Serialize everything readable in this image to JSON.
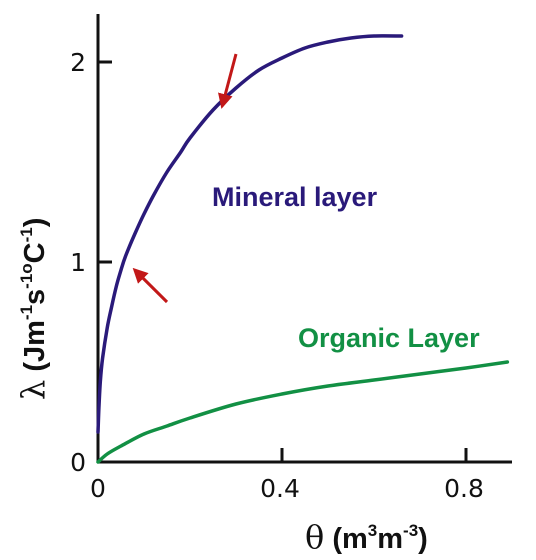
{
  "chart_data": {
    "type": "line",
    "title": "",
    "xlabel": {
      "symbol": "θ",
      "prefix": " (m",
      "sup1": "3",
      "mid": "m",
      "sup2": "-3",
      "suffix": ")"
    },
    "ylabel": {
      "symbol": "λ",
      "prefix": " (Jm",
      "sup1": "-1",
      "mid": "s",
      "sup2": "-1o",
      "post": "C",
      "sup3": "-1",
      "suffix": ")"
    },
    "xlim": [
      0,
      0.9
    ],
    "ylim": [
      0,
      2.24
    ],
    "xticks": [
      {
        "value": 0,
        "label": "0"
      },
      {
        "value": 0.4,
        "label": "0.4"
      },
      {
        "value": 0.8,
        "label": "0.8"
      }
    ],
    "yticks": [
      {
        "value": 0,
        "label": "0"
      },
      {
        "value": 1,
        "label": "1"
      },
      {
        "value": 2,
        "label": "2"
      }
    ],
    "grid": false,
    "series": [
      {
        "name": "Mineral layer",
        "color": "#2a1a7a",
        "x": [
          0.0,
          0.002,
          0.005,
          0.01,
          0.02,
          0.03,
          0.04,
          0.05,
          0.06,
          0.08,
          0.1,
          0.12,
          0.15,
          0.18,
          0.2,
          0.25,
          0.3,
          0.35,
          0.4,
          0.45,
          0.5,
          0.55,
          0.6,
          0.66
        ],
        "y": [
          0.15,
          0.27,
          0.4,
          0.52,
          0.67,
          0.78,
          0.88,
          0.96,
          1.03,
          1.14,
          1.24,
          1.33,
          1.45,
          1.55,
          1.62,
          1.76,
          1.87,
          1.96,
          2.02,
          2.07,
          2.1,
          2.12,
          2.13,
          2.13
        ]
      },
      {
        "name": "Organic Layer",
        "color": "#129044",
        "x": [
          0.0,
          0.02,
          0.05,
          0.1,
          0.15,
          0.2,
          0.3,
          0.4,
          0.5,
          0.6,
          0.7,
          0.8,
          0.89
        ],
        "y": [
          0.0,
          0.04,
          0.08,
          0.14,
          0.18,
          0.22,
          0.29,
          0.34,
          0.38,
          0.41,
          0.44,
          0.47,
          0.5
        ]
      }
    ],
    "annotations": [
      {
        "type": "arrow",
        "color": "#c21818",
        "from": [
          0.3,
          2.04
        ],
        "to": [
          0.27,
          1.78
        ]
      },
      {
        "type": "arrow",
        "color": "#c21818",
        "from": [
          0.15,
          0.8
        ],
        "to": [
          0.08,
          0.96
        ]
      }
    ]
  }
}
